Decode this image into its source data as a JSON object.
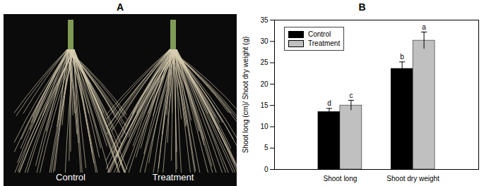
{
  "photo": {
    "label": "A",
    "captions": [
      "Control",
      "Treatment"
    ]
  },
  "chart_data": {
    "type": "bar",
    "title": "B",
    "categories": [
      "Shoot long",
      "Shoot dry weight"
    ],
    "series": [
      {
        "name": "Control",
        "color": "#000000",
        "values": [
          13.5,
          23.6
        ],
        "errors": [
          0.8,
          1.6
        ],
        "annotations": [
          "d",
          "b"
        ]
      },
      {
        "name": "Treatment",
        "color": "#c0c0c0",
        "values": [
          15.0,
          30.2
        ],
        "errors": [
          1.2,
          2.0
        ],
        "annotations": [
          "c",
          "a"
        ]
      }
    ],
    "ylabel": "Shoot long (cm)/ Shoot dry weight (g)",
    "ylim": [
      0,
      35
    ],
    "yticks": [
      0,
      5,
      10,
      15,
      20,
      25,
      30,
      35
    ],
    "grid": false,
    "legend": "upper left"
  }
}
